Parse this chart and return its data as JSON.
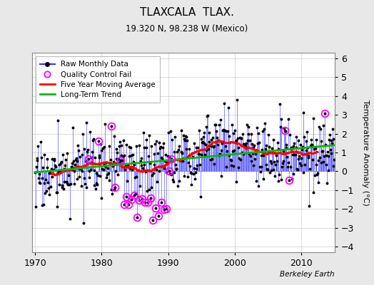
{
  "title": "TLAXCALA  TLAX.",
  "subtitle": "19.320 N, 98.238 W (Mexico)",
  "ylabel": "Temperature Anomaly (°C)",
  "credit": "Berkeley Earth",
  "ylim": [
    -4.3,
    6.3
  ],
  "xlim": [
    1969.5,
    2015.0
  ],
  "yticks": [
    -4,
    -3,
    -2,
    -1,
    0,
    1,
    2,
    3,
    4,
    5,
    6
  ],
  "xticks": [
    1970,
    1980,
    1990,
    2000,
    2010
  ],
  "bg_color": "#e8e8e8",
  "plot_bg_color": "#ffffff",
  "stem_color": "#3333ff",
  "dot_color": "#000000",
  "moving_avg_color": "#ff0000",
  "trend_color": "#00bb00",
  "qc_fail_color": "#ff00ff",
  "seed": 17
}
